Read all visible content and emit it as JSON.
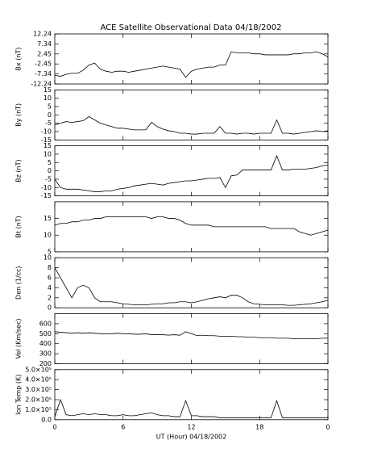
{
  "chart_data": [
    {
      "type": "line",
      "title": "ACE Satellite Observational Data   04/18/2002",
      "ylabel": "Bx (nT)",
      "color": "#000000",
      "x": [
        0,
        0.5,
        1,
        1.5,
        2,
        2.5,
        3,
        3.5,
        4,
        4.5,
        5,
        5.5,
        6,
        6.5,
        7,
        7.5,
        8,
        8.5,
        9,
        9.5,
        10,
        10.5,
        11,
        11.5,
        12,
        12.5,
        13,
        13.5,
        14,
        14.5,
        15,
        15.5,
        16,
        16.5,
        17,
        17.5,
        18,
        18.5,
        19,
        19.5,
        20,
        20.5,
        21,
        21.5,
        22,
        22.5,
        23,
        23.5,
        24
      ],
      "values": [
        -8,
        -8.5,
        -7.5,
        -7,
        -7,
        -5.5,
        -3,
        -2,
        -5,
        -6,
        -6.5,
        -6,
        -6,
        -6.5,
        -6,
        -5.5,
        -5,
        -4.5,
        -4,
        -3.5,
        -4,
        -4.5,
        -5,
        -9,
        -6,
        -5,
        -4.5,
        -4,
        -4,
        -3,
        -3,
        3.5,
        3,
        3,
        3,
        2.5,
        2.5,
        2,
        2,
        2,
        2,
        2,
        2.5,
        2.5,
        3,
        3,
        3.5,
        2.5,
        1
      ],
      "xlim": [
        0,
        24
      ],
      "xticks": [
        0,
        6,
        12,
        18,
        {
          "value": 24,
          "label": "0"
        }
      ],
      "ylim": [
        -12.24,
        12.24
      ],
      "yticks": [
        -12.24,
        -7.34,
        -2.45,
        2.45,
        7.34,
        12.24
      ]
    },
    {
      "type": "line",
      "ylabel": "By (nT)",
      "color": "#000000",
      "x": [
        0,
        0.5,
        1,
        1.5,
        2,
        2.5,
        3,
        3.5,
        4,
        4.5,
        5,
        5.5,
        6,
        6.5,
        7,
        7.5,
        8,
        8.5,
        9,
        9.5,
        10,
        10.5,
        11,
        11.5,
        12,
        12.5,
        13,
        13.5,
        14,
        14.5,
        15,
        15.5,
        16,
        16.5,
        17,
        17.5,
        18,
        18.5,
        19,
        19.5,
        20,
        20.5,
        21,
        21.5,
        22,
        22.5,
        23,
        23.5,
        24
      ],
      "values": [
        -6,
        -5,
        -4,
        -4.5,
        -4,
        -3.5,
        -1,
        -3,
        -5,
        -6,
        -7,
        -8,
        -8,
        -8.5,
        -9,
        -9,
        -9,
        -4.5,
        -7,
        -8.5,
        -9.5,
        -10,
        -11,
        -11,
        -11.5,
        -11.5,
        -11,
        -11,
        -11,
        -7,
        -11,
        -11,
        -11.5,
        -11,
        -11,
        -11.5,
        -11,
        -11,
        -11,
        -3,
        -11,
        -11,
        -11.5,
        -11,
        -10.5,
        -10,
        -9.5,
        -10,
        -9.5
      ],
      "xlim": [
        0,
        24
      ],
      "xticks": [
        0,
        6,
        12,
        18,
        {
          "value": 24,
          "label": "0"
        }
      ],
      "ylim": [
        -15,
        15
      ],
      "yticks": [
        -15,
        -10,
        -5,
        0,
        5,
        10,
        15
      ]
    },
    {
      "type": "line",
      "ylabel": "Bz (nT)",
      "color": "#000000",
      "x": [
        0,
        0.5,
        1,
        1.5,
        2,
        2.5,
        3,
        3.5,
        4,
        4.5,
        5,
        5.5,
        6,
        6.5,
        7,
        7.5,
        8,
        8.5,
        9,
        9.5,
        10,
        10.5,
        11,
        11.5,
        12,
        12.5,
        13,
        13.5,
        14,
        14.5,
        15,
        15.5,
        16,
        16.5,
        17,
        17.5,
        18,
        18.5,
        19,
        19.5,
        20,
        20.5,
        21,
        21.5,
        22,
        22.5,
        23,
        23.5,
        24
      ],
      "values": [
        -5,
        -10,
        -11,
        -11,
        -11,
        -11.5,
        -12,
        -12.5,
        -12.5,
        -12,
        -12,
        -11,
        -10.5,
        -10,
        -9,
        -8.5,
        -8,
        -7.5,
        -8,
        -8.5,
        -7.5,
        -7,
        -6.5,
        -6,
        -6,
        -5.5,
        -5,
        -4.5,
        -4.5,
        -4,
        -10,
        -3,
        -2.5,
        0.5,
        0.5,
        0.5,
        0.5,
        0.5,
        0.5,
        9,
        0.5,
        0.5,
        1,
        1,
        1,
        1.5,
        2,
        3,
        3.5
      ],
      "xlim": [
        0,
        24
      ],
      "xticks": [
        0,
        6,
        12,
        18,
        {
          "value": 24,
          "label": "0"
        }
      ],
      "ylim": [
        -15,
        15
      ],
      "yticks": [
        -15,
        -10,
        -5,
        0,
        5,
        10,
        15
      ]
    },
    {
      "type": "line",
      "ylabel": "Bt (nT)",
      "color": "#000000",
      "x": [
        0,
        0.5,
        1,
        1.5,
        2,
        2.5,
        3,
        3.5,
        4,
        4.5,
        5,
        5.5,
        6,
        6.5,
        7,
        7.5,
        8,
        8.5,
        9,
        9.5,
        10,
        10.5,
        11,
        11.5,
        12,
        12.5,
        13,
        13.5,
        14,
        14.5,
        15,
        15.5,
        16,
        16.5,
        17,
        17.5,
        18,
        18.5,
        19,
        19.5,
        20,
        20.5,
        21,
        21.5,
        22,
        22.5,
        23,
        23.5,
        24
      ],
      "values": [
        13,
        13.5,
        13.5,
        14,
        14,
        14.5,
        14.5,
        15,
        15,
        15.5,
        15.5,
        15.5,
        15.5,
        15.5,
        15.5,
        15.5,
        15.5,
        15,
        15.5,
        15.5,
        15,
        15,
        14.5,
        13.5,
        13,
        13,
        13,
        13,
        12.5,
        12.5,
        12.5,
        12.5,
        12.5,
        12.5,
        12.5,
        12.5,
        12.5,
        12.5,
        12,
        12,
        12,
        12,
        12,
        11,
        10.5,
        10,
        10.5,
        11,
        11.5
      ],
      "xlim": [
        0,
        24
      ],
      "xticks": [
        0,
        6,
        12,
        18,
        {
          "value": 24,
          "label": "0"
        }
      ],
      "ylim": [
        5,
        20
      ],
      "yticks": [
        5,
        10,
        15
      ]
    },
    {
      "type": "line",
      "ylabel": "Den (1/cc)",
      "color": "#000000",
      "x": [
        0,
        0.5,
        1,
        1.5,
        2,
        2.5,
        3,
        3.5,
        4,
        4.5,
        5,
        5.5,
        6,
        6.5,
        7,
        7.5,
        8,
        8.5,
        9,
        9.5,
        10,
        10.5,
        11,
        11.5,
        12,
        12.5,
        13,
        13.5,
        14,
        14.5,
        15,
        15.5,
        16,
        16.5,
        17,
        17.5,
        18,
        18.5,
        19,
        19.5,
        20,
        20.5,
        21,
        21.5,
        22,
        22.5,
        23,
        23.5,
        24
      ],
      "values": [
        8,
        6,
        4,
        2,
        4,
        4.5,
        4,
        2,
        1.2,
        1.2,
        1.2,
        1,
        0.8,
        0.7,
        0.6,
        0.6,
        0.6,
        0.7,
        0.8,
        0.8,
        1,
        1,
        1.2,
        1.2,
        1,
        1.2,
        1.5,
        1.8,
        2,
        2.2,
        2,
        2.5,
        2.5,
        2,
        1.2,
        0.8,
        0.7,
        0.6,
        0.6,
        0.6,
        0.6,
        0.5,
        0.5,
        0.6,
        0.7,
        0.8,
        1,
        1.2,
        1.5
      ],
      "xlim": [
        0,
        24
      ],
      "xticks": [
        0,
        6,
        12,
        18,
        {
          "value": 24,
          "label": "0"
        }
      ],
      "ylim": [
        0,
        10
      ],
      "yticks": [
        0,
        2,
        4,
        6,
        8,
        10
      ]
    },
    {
      "type": "line",
      "ylabel": "Vel (Km/sec)",
      "color": "#000000",
      "x": [
        0,
        0.5,
        1,
        1.5,
        2,
        2.5,
        3,
        3.5,
        4,
        4.5,
        5,
        5.5,
        6,
        6.5,
        7,
        7.5,
        8,
        8.5,
        9,
        9.5,
        10,
        10.5,
        11,
        11.5,
        12,
        12.5,
        13,
        13.5,
        14,
        14.5,
        15,
        15.5,
        16,
        16.5,
        17,
        17.5,
        18,
        18.5,
        19,
        19.5,
        20,
        20.5,
        21,
        21.5,
        22,
        22.5,
        23,
        23.5,
        24
      ],
      "values": [
        520,
        515,
        510,
        505,
        510,
        505,
        510,
        505,
        500,
        500,
        500,
        505,
        500,
        500,
        495,
        495,
        500,
        490,
        490,
        490,
        485,
        490,
        485,
        520,
        500,
        480,
        485,
        480,
        480,
        475,
        475,
        475,
        470,
        470,
        465,
        465,
        460,
        460,
        460,
        455,
        455,
        455,
        450,
        450,
        450,
        450,
        450,
        455,
        455
      ],
      "xlim": [
        0,
        24
      ],
      "xticks": [
        0,
        6,
        12,
        18,
        {
          "value": 24,
          "label": "0"
        }
      ],
      "ylim": [
        200,
        700
      ],
      "yticks": [
        200,
        300,
        400,
        500,
        600
      ]
    },
    {
      "type": "line",
      "ylabel": "Ion Temp (K)",
      "xlabel": "UT (Hour)  04/18/2002",
      "color": "#000000",
      "x": [
        0,
        0.5,
        1,
        1.5,
        2,
        2.5,
        3,
        3.5,
        4,
        4.5,
        5,
        5.5,
        6,
        6.5,
        7,
        7.5,
        8,
        8.5,
        9,
        9.5,
        10,
        10.5,
        11,
        11.5,
        12,
        12.5,
        13,
        13.5,
        14,
        14.5,
        15,
        15.5,
        16,
        16.5,
        17,
        17.5,
        18,
        18.5,
        19,
        19.5,
        20,
        20.5,
        21,
        21.5,
        22,
        22.5,
        23,
        23.5,
        24
      ],
      "values": [
        30000,
        200000,
        50000,
        40000,
        50000,
        60000,
        50000,
        60000,
        50000,
        50000,
        40000,
        40000,
        50000,
        40000,
        40000,
        50000,
        60000,
        70000,
        50000,
        40000,
        40000,
        30000,
        30000,
        190000,
        40000,
        40000,
        30000,
        30000,
        30000,
        20000,
        20000,
        20000,
        20000,
        20000,
        20000,
        20000,
        20000,
        20000,
        20000,
        190000,
        20000,
        20000,
        20000,
        20000,
        20000,
        20000,
        20000,
        20000,
        20000
      ],
      "xlim": [
        0,
        24
      ],
      "xticks": [
        0,
        6,
        12,
        18,
        {
          "value": 24,
          "label": "0"
        }
      ],
      "ylim": [
        0,
        500000
      ],
      "yticks": [
        {
          "value": 0,
          "label": "0.0"
        },
        {
          "value": 100000,
          "label": "1.0×10⁵"
        },
        {
          "value": 200000,
          "label": "2.0×10⁵"
        },
        {
          "value": 300000,
          "label": "3.0×10⁵"
        },
        {
          "value": 400000,
          "label": "4.0×10⁵"
        },
        {
          "value": 500000,
          "label": "5.0×10⁵"
        }
      ]
    }
  ]
}
